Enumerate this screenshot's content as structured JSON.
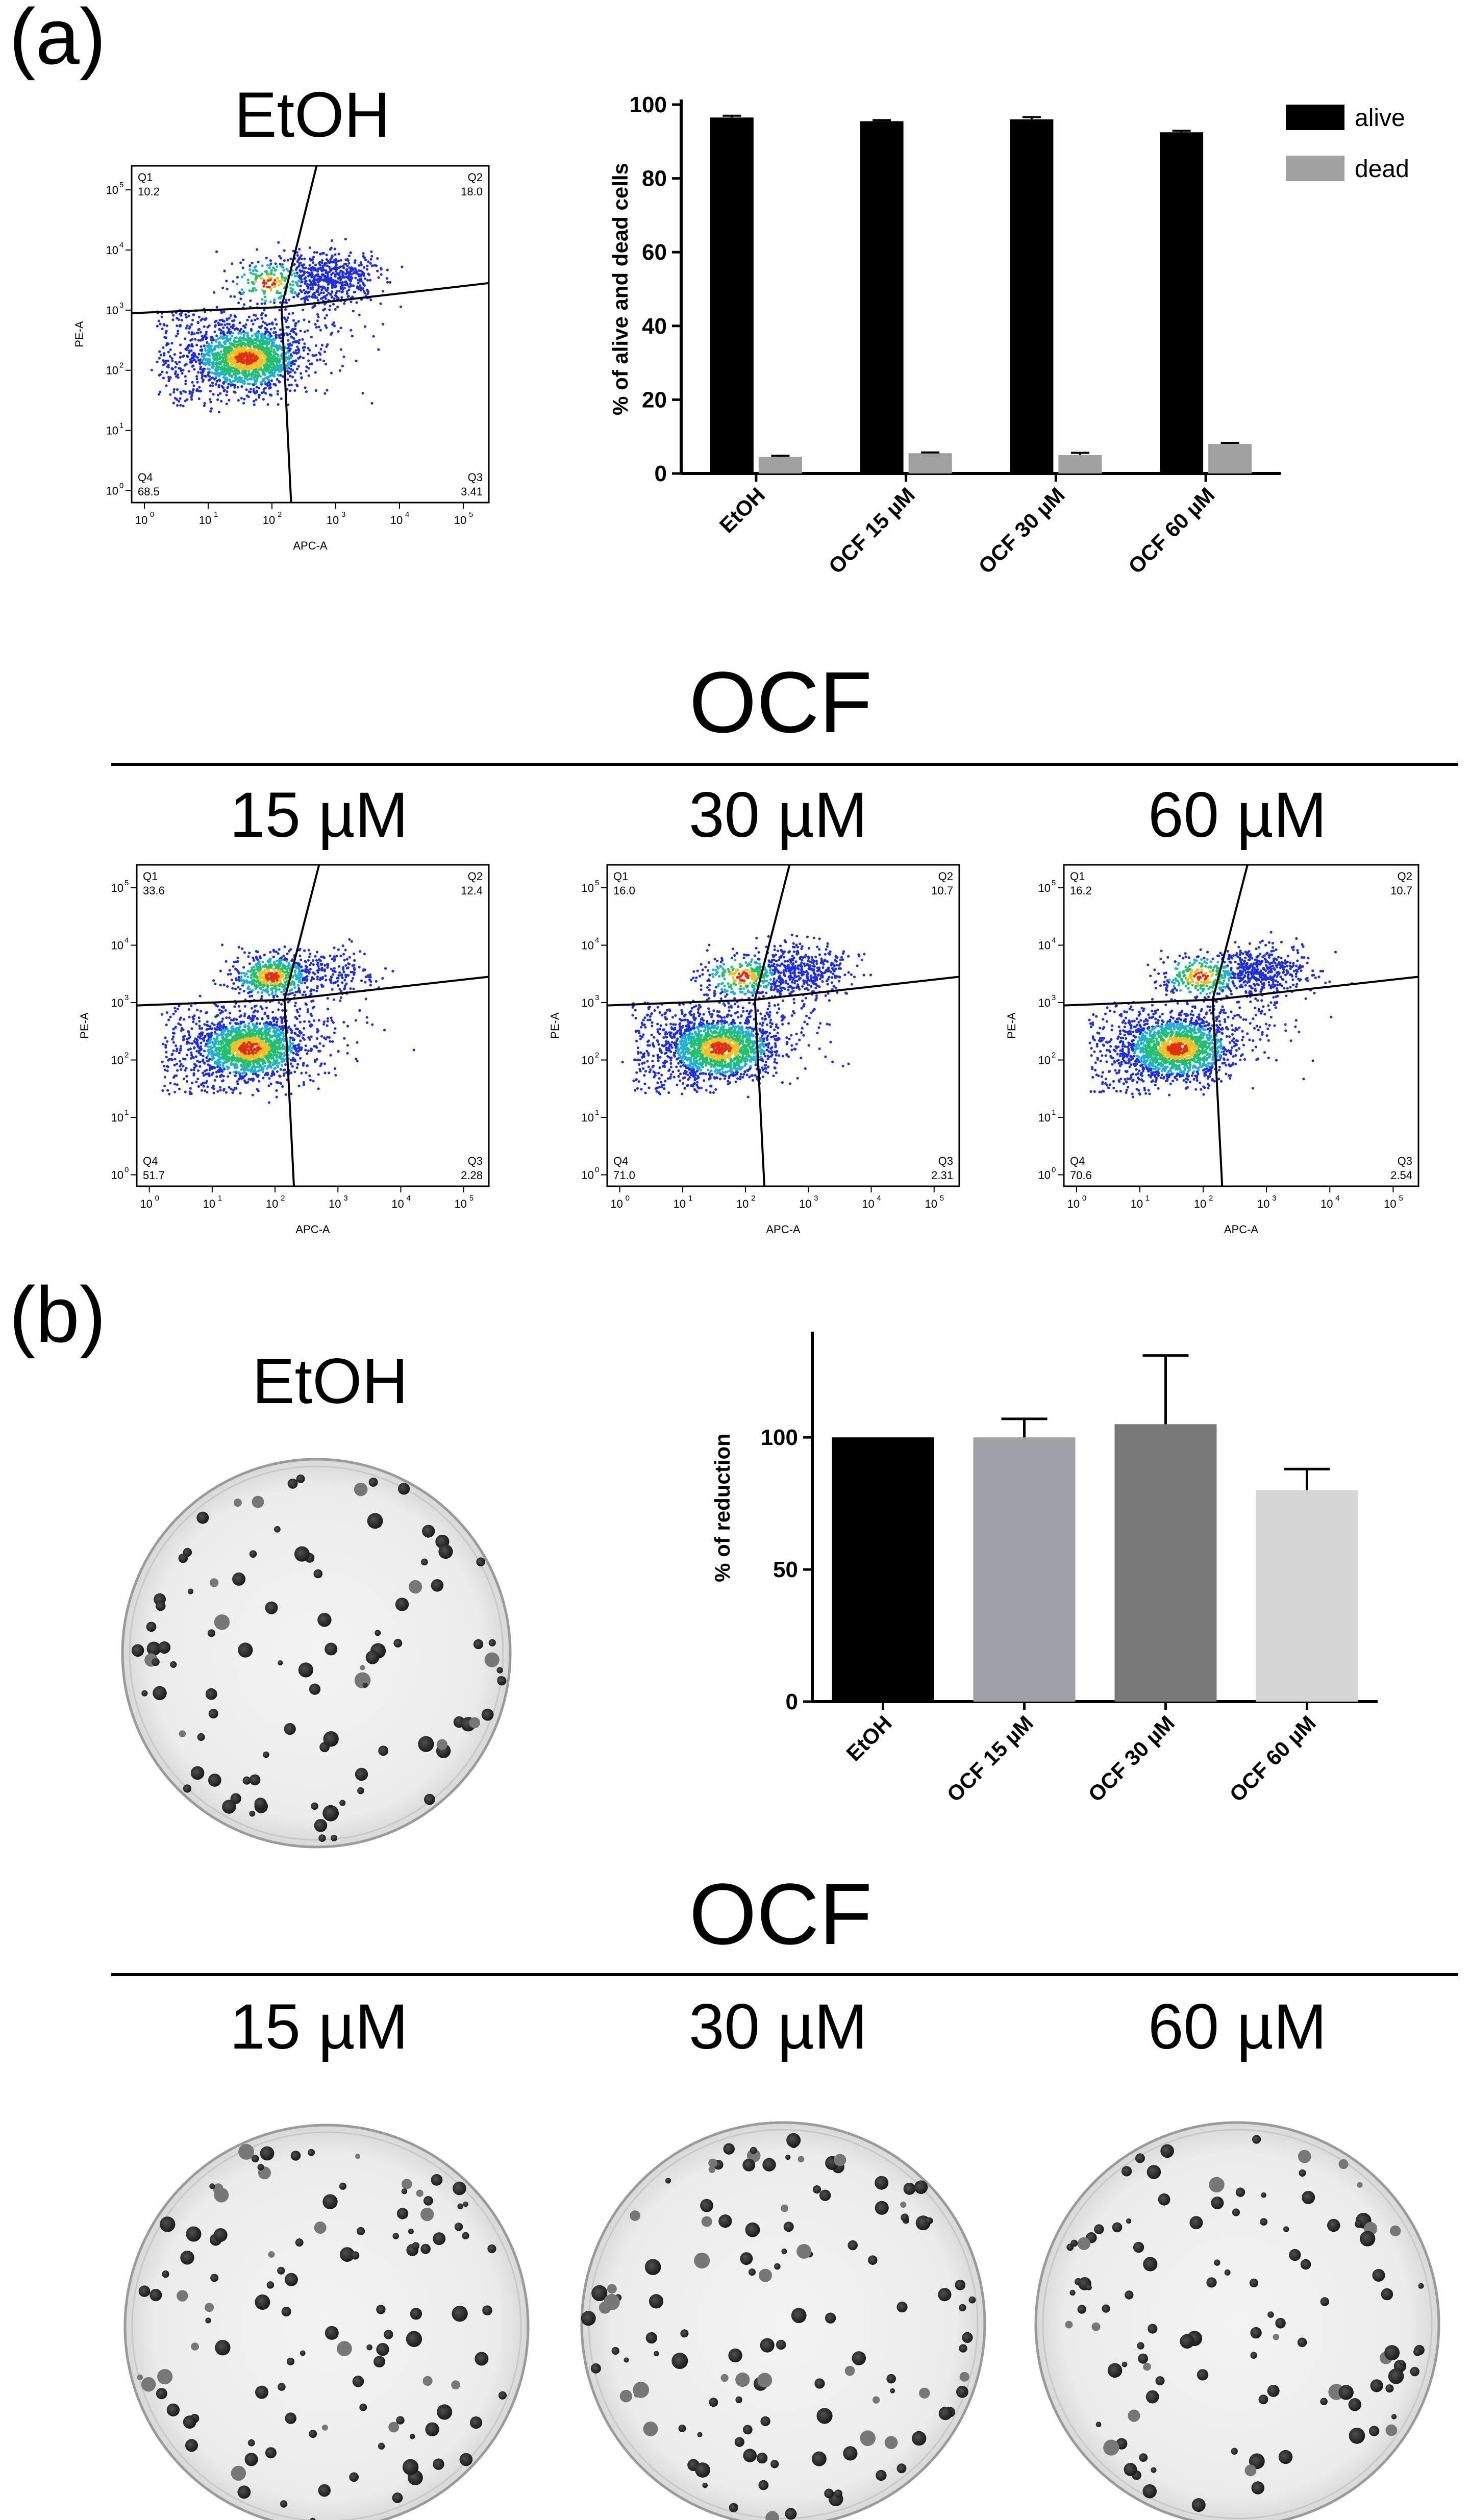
{
  "panel_labels": {
    "a": "(a)",
    "b": "(b)"
  },
  "headings": {
    "etoh_a": "EtOH",
    "ocf_a": "OCF",
    "etoh_b": "EtOH",
    "ocf_b": "OCF",
    "conc_15": "15 µM",
    "conc_30": "30 µM",
    "conc_60": "60 µM"
  },
  "flow_plots": [
    {
      "id": "etoh",
      "axis_x_label": "APC-A",
      "axis_y_label": "PE-A",
      "q1_label": "Q1",
      "q1": "10.2",
      "q2_label": "Q2",
      "q2": "18.0",
      "q3_label": "Q3",
      "q3": "3.41",
      "q4_label": "Q4",
      "q4": "68.5"
    },
    {
      "id": "ocf15",
      "axis_x_label": "APC-A",
      "axis_y_label": "PE-A",
      "q1_label": "Q1",
      "q1": "33.6",
      "q2_label": "Q2",
      "q2": "12.4",
      "q3_label": "Q3",
      "q3": "2.28",
      "q4_label": "Q4",
      "q4": "51.7"
    },
    {
      "id": "ocf30",
      "axis_x_label": "APC-A",
      "axis_y_label": "PE-A",
      "q1_label": "Q1",
      "q1": "16.0",
      "q2_label": "Q2",
      "q2": "10.7",
      "q3_label": "Q3",
      "q3": "2.31",
      "q4_label": "Q4",
      "q4": "71.0"
    },
    {
      "id": "ocf60",
      "axis_x_label": "APC-A",
      "axis_y_label": "PE-A",
      "q1_label": "Q1",
      "q1": "16.2",
      "q2_label": "Q2",
      "q2": "10.7",
      "q3_label": "Q3",
      "q3": "2.54",
      "q4_label": "Q4",
      "q4": "70.6"
    }
  ],
  "flow_ticks": {
    "base": "10",
    "exponents": [
      "0",
      "1",
      "2",
      "3",
      "4",
      "5"
    ]
  },
  "colors": {
    "alive": "#000000",
    "dead": "#a0a0a0",
    "scatter_low": "#1f2fe0",
    "scatter_mid": "#20c070",
    "scatter_high": "#e03010"
  },
  "chart_data": [
    {
      "type": "bar",
      "title": "",
      "categories": [
        "EtOH",
        "OCF 15 µM",
        "OCF 30 µM",
        "OCF 60 µM"
      ],
      "series": [
        {
          "name": "alive",
          "values": [
            96.5,
            95.5,
            96.0,
            92.5
          ],
          "errors": [
            0.5,
            0.3,
            0.6,
            0.4
          ]
        },
        {
          "name": "dead",
          "values": [
            4.5,
            5.5,
            5.0,
            8.0
          ],
          "errors": [
            0.3,
            0.2,
            0.6,
            0.3
          ]
        }
      ],
      "xlabel": "",
      "ylabel": "% of alive and dead cells",
      "ylim": [
        0,
        100
      ],
      "yticks": [
        0,
        20,
        40,
        60,
        80,
        100
      ],
      "legend": [
        "alive",
        "dead"
      ],
      "legend_position": "top-right"
    },
    {
      "type": "bar",
      "title": "",
      "categories": [
        "EtOH",
        "OCF 15 µM",
        "OCF 30 µM",
        "OCF 60 µM"
      ],
      "values": [
        100,
        100,
        105,
        80
      ],
      "errors": [
        0,
        7,
        26,
        8
      ],
      "bar_colors": [
        "#000000",
        "#a0a0a8",
        "#787878",
        "#d6d6d6"
      ],
      "xlabel": "",
      "ylabel": "% of reduction",
      "ylim": [
        0,
        140
      ],
      "yticks": [
        0,
        50,
        100
      ]
    }
  ]
}
